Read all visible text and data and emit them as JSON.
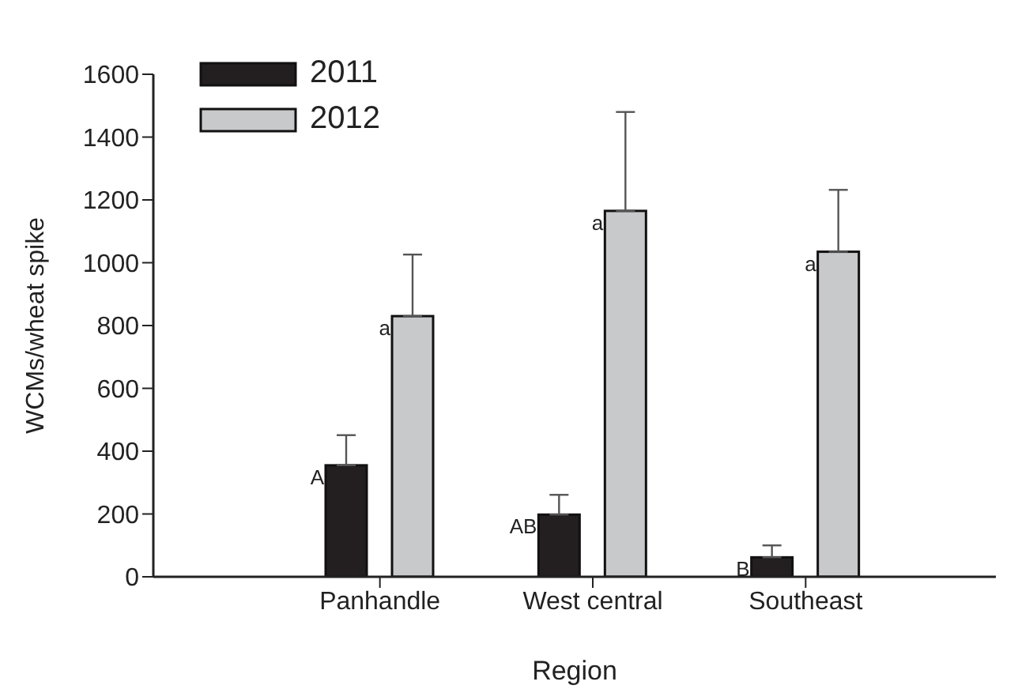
{
  "chart_data": {
    "type": "bar",
    "xlabel": "Region",
    "ylabel": "WCMs/wheat spike",
    "categories": [
      "Panhandle",
      "West central",
      "Southeast"
    ],
    "series": [
      {
        "name": "2011",
        "color": "#231f20",
        "values": [
          355,
          198,
          62
        ],
        "errors": [
          [
            355,
            451
          ],
          [
            198,
            261
          ],
          [
            62,
            100
          ]
        ]
      },
      {
        "name": "2012",
        "color": "#c8c9cb",
        "values": [
          830,
          1165,
          1035
        ],
        "errors": [
          [
            830,
            1026
          ],
          [
            1165,
            1480
          ],
          [
            1035,
            1232
          ]
        ]
      }
    ],
    "ylim": [
      0,
      1600
    ],
    "yticks": [
      0,
      200,
      400,
      600,
      800,
      1000,
      1200,
      1400,
      1600
    ],
    "grid": false,
    "legend": "top left",
    "annotations": [
      "A",
      "a",
      "AB",
      "a",
      "B",
      "a"
    ]
  }
}
